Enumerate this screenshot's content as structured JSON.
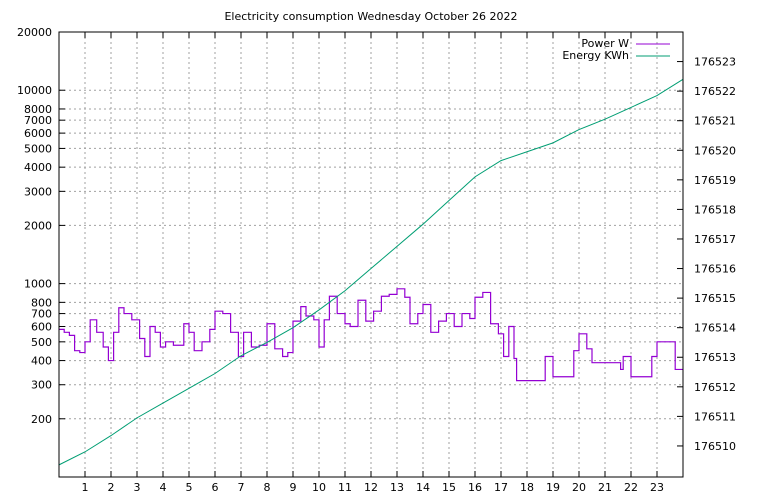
{
  "chart_data": {
    "type": "line",
    "title": "Electricity consumption Wednesday October 26 2022",
    "xlabel": "",
    "ylabel": "",
    "xlim": [
      0,
      24
    ],
    "ylim": [
      100,
      20000
    ],
    "yscale": "log",
    "y2lim": [
      176508.95,
      176524.0
    ],
    "grid": true,
    "legend_placement": "top-right",
    "x_ticks": [
      1,
      2,
      3,
      4,
      5,
      6,
      7,
      8,
      9,
      10,
      11,
      12,
      13,
      14,
      15,
      16,
      17,
      18,
      19,
      20,
      21,
      22,
      23
    ],
    "y_ticks": [
      200,
      300,
      400,
      500,
      600,
      700,
      800,
      1000,
      2000,
      3000,
      4000,
      5000,
      6000,
      7000,
      8000,
      10000,
      20000
    ],
    "y2_ticks": [
      176510,
      176511,
      176512,
      176513,
      176514,
      176515,
      176516,
      176517,
      176518,
      176519,
      176520,
      176521,
      176522,
      176523
    ],
    "series": [
      {
        "name": "Power W",
        "axis": "left",
        "color": "#9400d3",
        "style": "steps",
        "points": [
          [
            0,
            580
          ],
          [
            0.2,
            560
          ],
          [
            0.4,
            540
          ],
          [
            0.6,
            450
          ],
          [
            0.8,
            440
          ],
          [
            1.0,
            500
          ],
          [
            1.2,
            650
          ],
          [
            1.45,
            560
          ],
          [
            1.7,
            470
          ],
          [
            1.9,
            400
          ],
          [
            2.1,
            560
          ],
          [
            2.3,
            750
          ],
          [
            2.5,
            700
          ],
          [
            2.8,
            650
          ],
          [
            3.1,
            520
          ],
          [
            3.3,
            420
          ],
          [
            3.5,
            600
          ],
          [
            3.7,
            560
          ],
          [
            3.9,
            470
          ],
          [
            4.1,
            500
          ],
          [
            4.4,
            480
          ],
          [
            4.8,
            620
          ],
          [
            5.0,
            560
          ],
          [
            5.2,
            450
          ],
          [
            5.5,
            500
          ],
          [
            5.8,
            580
          ],
          [
            6.0,
            720
          ],
          [
            6.3,
            700
          ],
          [
            6.6,
            560
          ],
          [
            6.9,
            420
          ],
          [
            7.1,
            560
          ],
          [
            7.4,
            470
          ],
          [
            7.7,
            480
          ],
          [
            8.0,
            620
          ],
          [
            8.3,
            460
          ],
          [
            8.6,
            420
          ],
          [
            8.8,
            440
          ],
          [
            9.0,
            640
          ],
          [
            9.3,
            760
          ],
          [
            9.5,
            680
          ],
          [
            9.8,
            650
          ],
          [
            10.0,
            470
          ],
          [
            10.2,
            650
          ],
          [
            10.4,
            860
          ],
          [
            10.7,
            700
          ],
          [
            11.0,
            620
          ],
          [
            11.2,
            600
          ],
          [
            11.5,
            820
          ],
          [
            11.8,
            640
          ],
          [
            12.1,
            720
          ],
          [
            12.4,
            860
          ],
          [
            12.7,
            880
          ],
          [
            13.0,
            940
          ],
          [
            13.3,
            850
          ],
          [
            13.5,
            620
          ],
          [
            13.8,
            700
          ],
          [
            14.0,
            780
          ],
          [
            14.3,
            560
          ],
          [
            14.6,
            640
          ],
          [
            14.9,
            700
          ],
          [
            15.2,
            600
          ],
          [
            15.5,
            700
          ],
          [
            15.8,
            660
          ],
          [
            16.0,
            850
          ],
          [
            16.3,
            900
          ],
          [
            16.6,
            620
          ],
          [
            16.9,
            550
          ],
          [
            17.1,
            420
          ],
          [
            17.3,
            600
          ],
          [
            17.5,
            410
          ],
          [
            17.6,
            315
          ],
          [
            18.5,
            315
          ],
          [
            18.7,
            420
          ],
          [
            19.0,
            330
          ],
          [
            19.8,
            450
          ],
          [
            20.0,
            550
          ],
          [
            20.3,
            460
          ],
          [
            20.5,
            390
          ],
          [
            21.6,
            360
          ],
          [
            21.7,
            420
          ],
          [
            22.0,
            330
          ],
          [
            22.8,
            420
          ],
          [
            23.0,
            500
          ],
          [
            23.6,
            500
          ],
          [
            23.7,
            360
          ],
          [
            24,
            360
          ]
        ]
      },
      {
        "name": "Energy KWh",
        "axis": "right",
        "color": "#009e73",
        "style": "line",
        "points": [
          [
            0,
            176509.36
          ],
          [
            1,
            176509.8
          ],
          [
            2,
            176510.35
          ],
          [
            3,
            176510.95
          ],
          [
            4,
            176511.45
          ],
          [
            5,
            176511.95
          ],
          [
            6,
            176512.45
          ],
          [
            7,
            176513.05
          ],
          [
            8,
            176513.5
          ],
          [
            9,
            176514.0
          ],
          [
            10,
            176514.6
          ],
          [
            11,
            176515.25
          ],
          [
            12,
            176516.0
          ],
          [
            13,
            176516.75
          ],
          [
            14,
            176517.5
          ],
          [
            15,
            176518.3
          ],
          [
            16,
            176519.1
          ],
          [
            17,
            176519.65
          ],
          [
            18,
            176519.95
          ],
          [
            19,
            176520.25
          ],
          [
            20,
            176520.7
          ],
          [
            21,
            176521.05
          ],
          [
            22,
            176521.45
          ],
          [
            23,
            176521.85
          ],
          [
            24,
            176522.4
          ]
        ]
      }
    ]
  }
}
